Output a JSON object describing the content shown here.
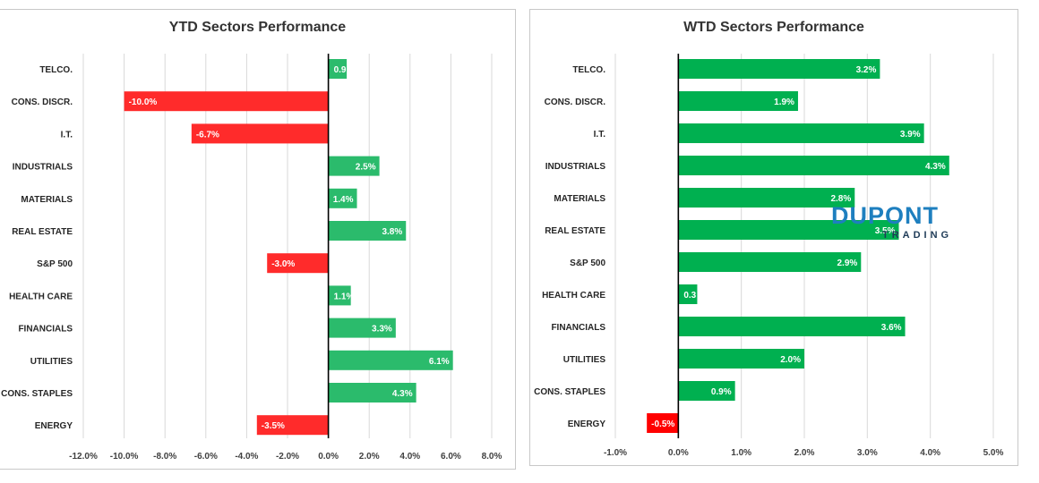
{
  "chart_data": [
    {
      "type": "bar",
      "orientation": "horizontal",
      "title": "YTD Sectors Performance",
      "categories": [
        "TELCO.",
        "CONS. DISCR.",
        "I.T.",
        "INDUSTRIALS",
        "MATERIALS",
        "REAL ESTATE",
        "S&P 500",
        "HEALTH CARE",
        "FINANCIALS",
        "UTILITIES",
        "CONS. STAPLES",
        "ENERGY"
      ],
      "values": [
        0.9,
        -10.0,
        -6.7,
        2.5,
        1.4,
        3.8,
        -3.0,
        1.1,
        3.3,
        6.1,
        4.3,
        -3.5
      ],
      "value_labels": [
        "0.9",
        "-10.0%",
        "-6.7%",
        "2.5%",
        "1.4%",
        "3.8%",
        "-3.0%",
        "1.1%",
        "3.3%",
        "6.1%",
        "4.3%",
        "-3.5%"
      ],
      "xlim": [
        -12,
        8
      ],
      "xticks": [
        -12,
        -10,
        -8,
        -6,
        -4,
        -2,
        0,
        2,
        4,
        6,
        8
      ],
      "xtick_labels": [
        "-12.0%",
        "-10.0%",
        "-8.0%",
        "-6.0%",
        "-4.0%",
        "-2.0%",
        "0.0%",
        "2.0%",
        "4.0%",
        "6.0%",
        "8.0%"
      ],
      "grid": "vertical",
      "colors": {
        "positive": "#2bbb6c",
        "negative": "#ff2b2b"
      }
    },
    {
      "type": "bar",
      "orientation": "horizontal",
      "title": "WTD Sectors Performance",
      "categories": [
        "TELCO.",
        "CONS. DISCR.",
        "I.T.",
        "INDUSTRIALS",
        "MATERIALS",
        "REAL ESTATE",
        "S&P 500",
        "HEALTH CARE",
        "FINANCIALS",
        "UTILITIES",
        "CONS. STAPLES",
        "ENERGY"
      ],
      "values": [
        3.2,
        1.9,
        3.9,
        4.3,
        2.8,
        3.5,
        2.9,
        0.3,
        3.6,
        2.0,
        0.9,
        -0.5
      ],
      "value_labels": [
        "3.2%",
        "1.9%",
        "3.9%",
        "4.3%",
        "2.8%",
        "3.5%",
        "2.9%",
        "0.3",
        "3.6%",
        "2.0%",
        "0.9%",
        "-0.5%"
      ],
      "xlim": [
        -1,
        5
      ],
      "xticks": [
        -1,
        0,
        1,
        2,
        3,
        4,
        5
      ],
      "xtick_labels": [
        "-1.0%",
        "0.0%",
        "1.0%",
        "2.0%",
        "3.0%",
        "4.0%",
        "5.0%"
      ],
      "grid": "vertical",
      "colors": {
        "positive": "#00b050",
        "negative": "#ff0000"
      }
    }
  ],
  "watermark": {
    "logo_text": "DUPONT",
    "logo_subtext": "TRADING"
  }
}
